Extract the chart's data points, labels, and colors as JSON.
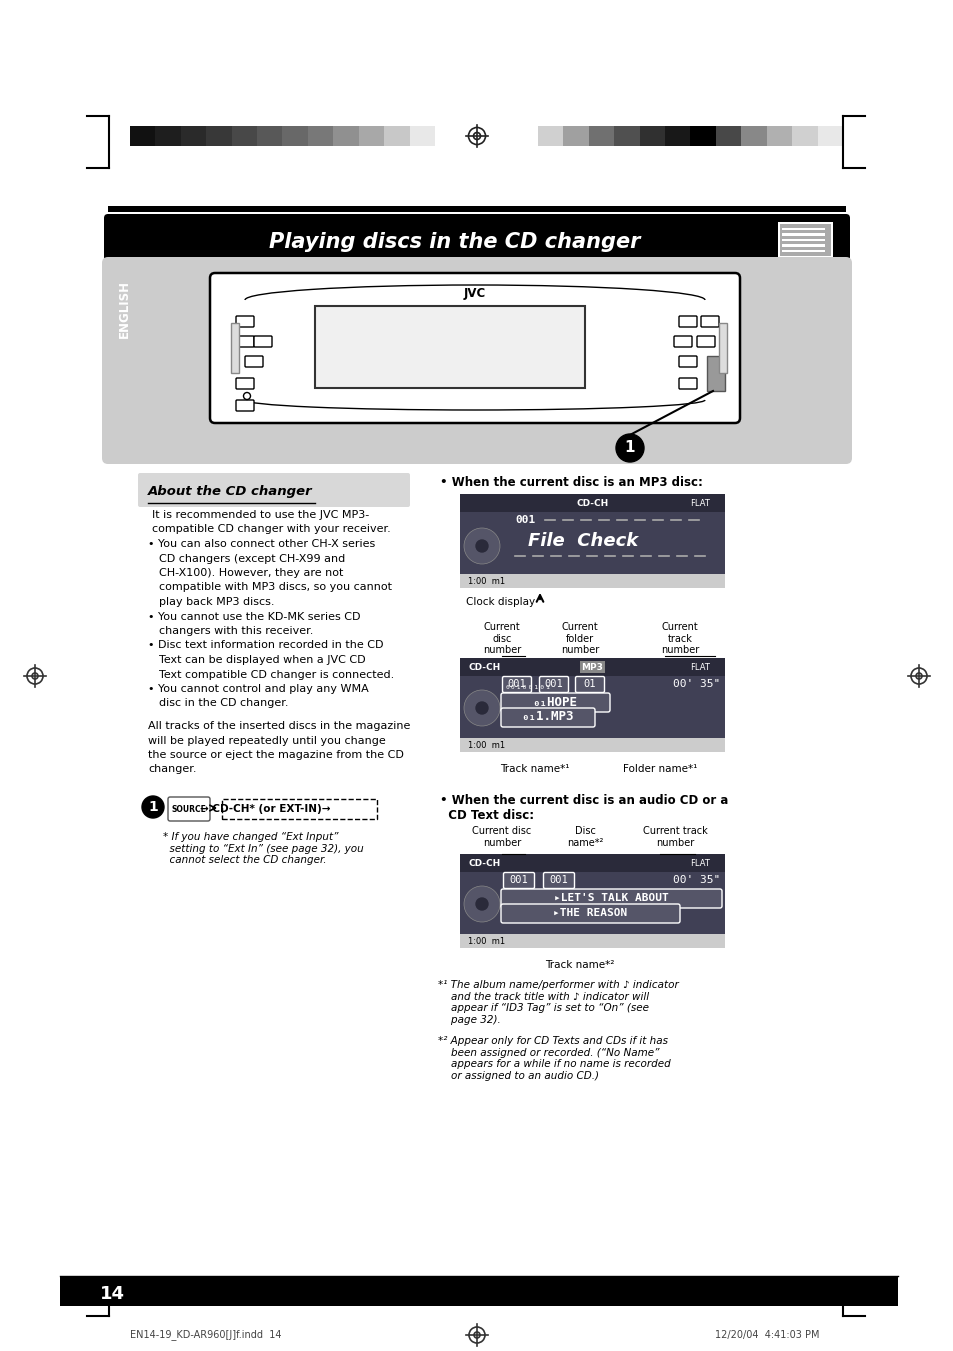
{
  "page_bg": "#ffffff",
  "title_text": "Playing discs in the CD changer",
  "title_bg": "#000000",
  "title_color": "#ffffff",
  "section_header": "About the CD changer",
  "body_text_left": [
    "It is recommended to use the JVC MP3-",
    "compatible CD changer with your receiver.",
    "• You can also connect other CH-X series",
    "  CD changers (except CH-X99 and",
    "  CH-X100). However, they are not",
    "  compatible with MP3 discs, so you cannot",
    "  play back MP3 discs.",
    "• You cannot use the KD-MK series CD",
    "  changers with this receiver.",
    "• Disc text information recorded in the CD",
    "  Text can be displayed when a JVC CD",
    "  Text compatible CD changer is connected.",
    "• You cannot control and play any WMA",
    "  disc in the CD changer."
  ],
  "middle_text": [
    "All tracks of the inserted discs in the magazine",
    "will be played repeatedly until you change",
    "the source or eject the magazine from the CD",
    "changer."
  ],
  "right_header_mp3": "• When the current disc is an MP3 disc:",
  "right_header_audio_1": "• When the current disc is an audio CD or a",
  "right_header_audio_2": "  CD Text disc:",
  "page_number": "14",
  "footer_left": "EN14-19_KD-AR960[J]f.indd  14",
  "footer_right": "12/20/04  4:41:03 PM",
  "clock_display_label": "Clock display",
  "current_disc_label": "Current\ndisc\nnumber",
  "current_folder_label": "Current\nfolder\nnumber",
  "current_track_label": "Current\ntrack\nnumber",
  "track_name_label1": "Track name*¹",
  "folder_name_label1": "Folder name*¹",
  "disc_name_label": "Disc\nname*²",
  "current_disc_label2": "Current disc\nnumber",
  "current_track_label2": "Current track\nnumber",
  "track_name_label2": "Track name*²",
  "colors_left": [
    "#111111",
    "#1e1e1e",
    "#2a2a2a",
    "#383838",
    "#484848",
    "#585858",
    "#686868",
    "#787878",
    "#909090",
    "#a8a8a8",
    "#c8c8c8",
    "#e8e8e8"
  ],
  "colors_right": [
    "#d0d0d0",
    "#a0a0a0",
    "#707070",
    "#505050",
    "#303030",
    "#181818",
    "#000000",
    "#484848",
    "#888888",
    "#b0b0b0",
    "#d0d0d0",
    "#e8e8e8"
  ]
}
